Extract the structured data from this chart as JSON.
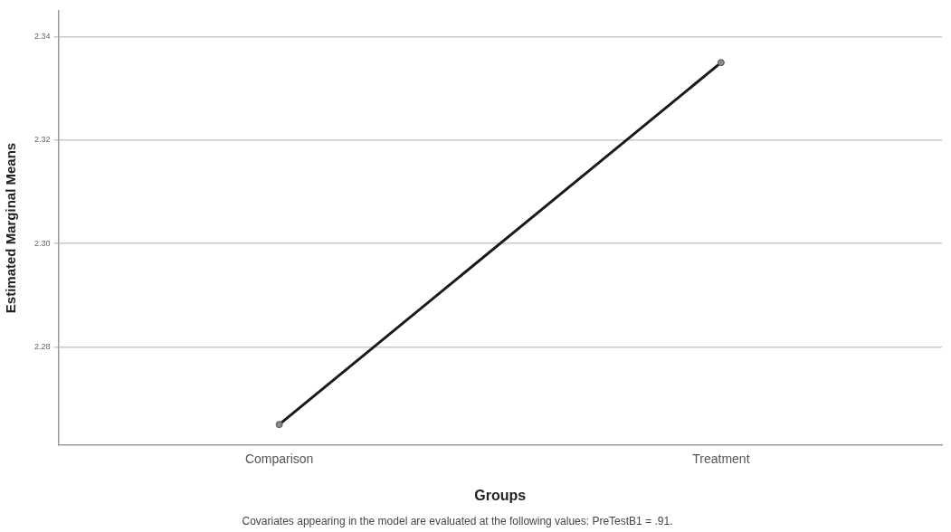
{
  "chart_data": {
    "type": "line",
    "xlabel": "Groups",
    "ylabel": "Estimated Marginal Means",
    "categories": [
      "Comparison",
      "Treatment"
    ],
    "series": [
      {
        "color": "#1a1a1a",
        "values": [
          2.265,
          2.335
        ]
      }
    ],
    "ylim": [
      2.261,
      2.345
    ],
    "yticks": [
      2.28,
      {
        "value": 2.3,
        "label": "2.30"
      },
      2.32,
      2.34
    ],
    "grid": "y",
    "legend": false,
    "marker": "circle",
    "line_style": "solid",
    "annotations": [
      "Covariates appearing in the model are evaluated at the following values: PreTestB1 = .91."
    ]
  }
}
